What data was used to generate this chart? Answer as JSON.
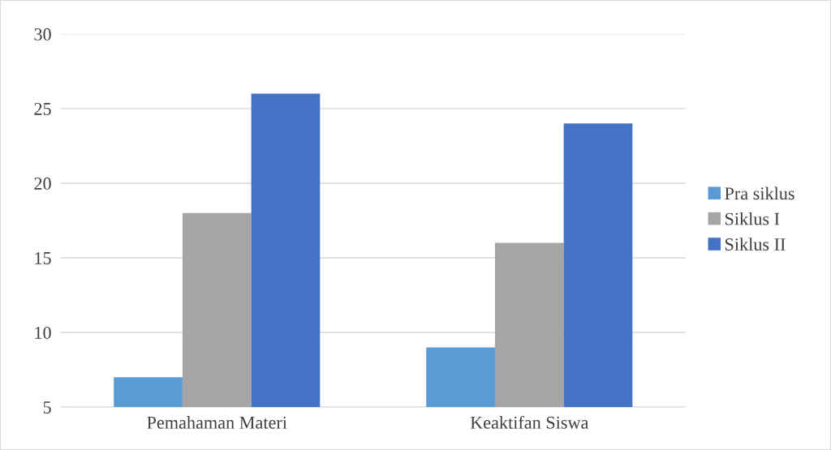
{
  "chart_data": {
    "type": "bar",
    "categories": [
      "Pemahaman Materi",
      "Keaktifan Siswa"
    ],
    "series": [
      {
        "name": "Pra siklus",
        "color": "#5b9bd5",
        "values": [
          7,
          9
        ]
      },
      {
        "name": "Siklus I",
        "color": "#a5a5a5",
        "values": [
          18,
          16
        ]
      },
      {
        "name": "Siklus II",
        "color": "#4472c4",
        "values": [
          26,
          24
        ]
      }
    ],
    "ylim": [
      5,
      30
    ],
    "yticks": [
      5,
      10,
      15,
      20,
      25,
      30
    ],
    "grid": "y",
    "legend": "right"
  }
}
